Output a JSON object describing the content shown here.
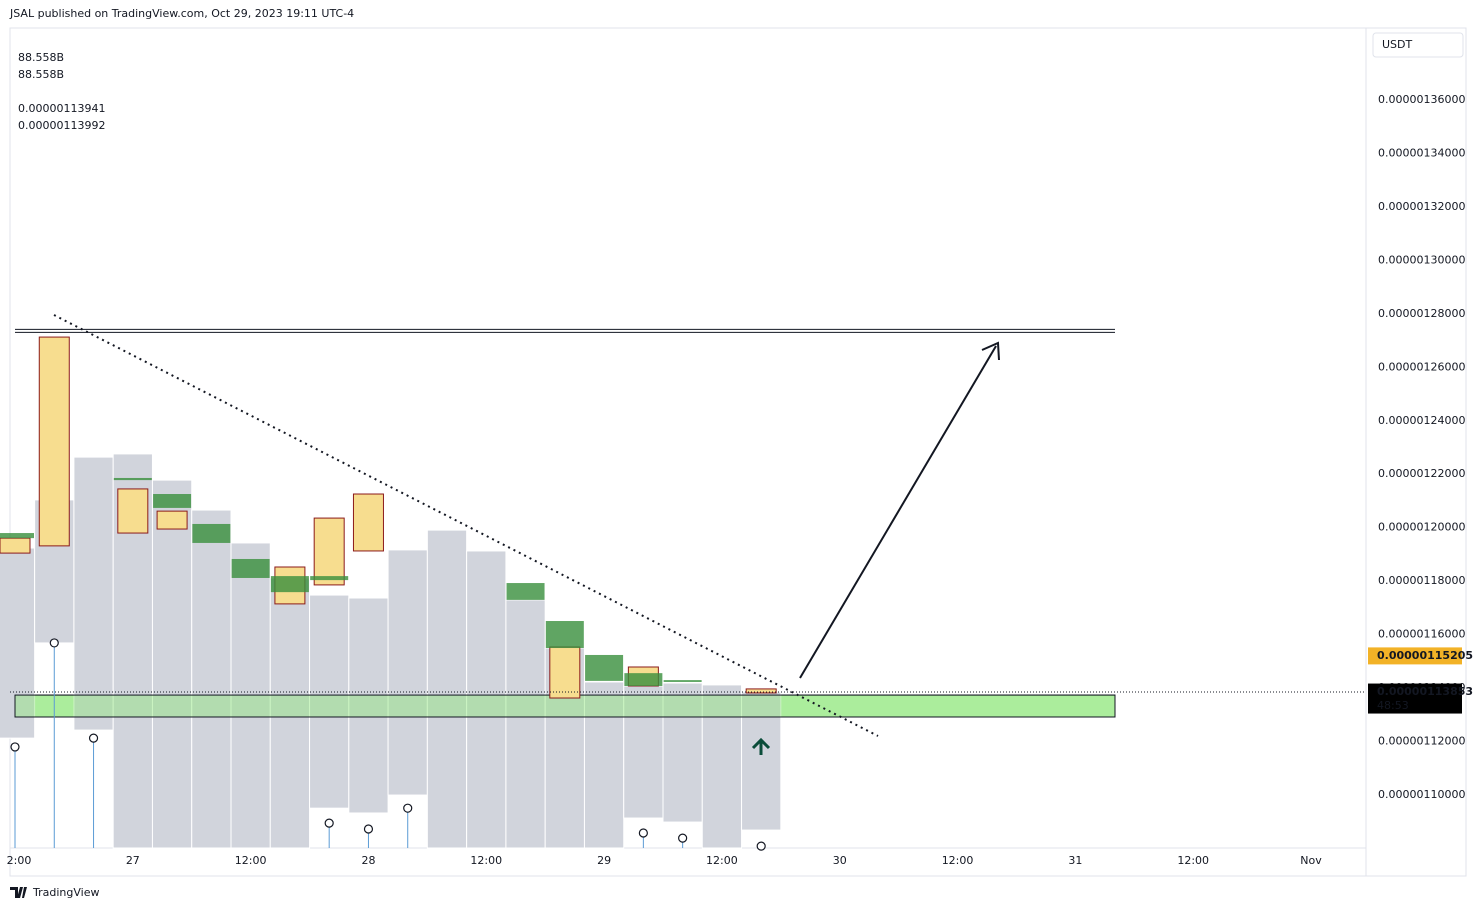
{
  "header": "JSAL published on TradingView.com, Oct 29, 2023 19:11 UTC-4",
  "footer": "TradingView",
  "chart_data": {
    "type": "candlestick",
    "currency": "USDT",
    "legend": [
      {
        "text": "88.558B",
        "color": "#131722"
      },
      {
        "text": "88.558B",
        "color": "#2f7fd6"
      },
      {
        "text": "0.00000113941",
        "color": "#c6c9d1"
      },
      {
        "text": "0.00000113992",
        "color": "#2e7d32"
      }
    ],
    "categories": [
      "2:00",
      null,
      null,
      "27",
      null,
      null,
      "12:00",
      null,
      null,
      "28",
      null,
      null,
      "12:00",
      null,
      null,
      "29",
      null,
      null,
      "12:00",
      null,
      null,
      "30",
      null,
      null,
      "12:00",
      null,
      null,
      "31",
      null,
      null,
      "12:00",
      null,
      null,
      "Nov"
    ],
    "ylim": [
      1.0802e-06,
      1.3869e-06
    ],
    "yticks": [
      {
        "value": 1.1e-06,
        "label": "0.00000110000"
      },
      {
        "value": 1.12e-06,
        "label": "0.00000112000"
      },
      {
        "value": 1.14e-06,
        "label": "0.00000114000"
      },
      {
        "value": 1.16e-06,
        "label": "0.00000116000"
      },
      {
        "value": 1.18e-06,
        "label": "0.00000118000"
      },
      {
        "value": 1.2e-06,
        "label": "0.00000120000"
      },
      {
        "value": 1.22e-06,
        "label": "0.00000122000"
      },
      {
        "value": 1.24e-06,
        "label": "0.00000124000"
      },
      {
        "value": 1.26e-06,
        "label": "0.00000126000"
      },
      {
        "value": 1.28e-06,
        "label": "0.00000128000"
      },
      {
        "value": 1.3e-06,
        "label": "0.00000130000"
      },
      {
        "value": 1.32e-06,
        "label": "0.00000132000"
      },
      {
        "value": 1.34e-06,
        "label": "0.00000134000"
      },
      {
        "value": 1.36e-06,
        "label": "0.00000136000"
      }
    ],
    "columns": {
      "color": "#d1d4dc",
      "top": [
        1.1924e-06,
        1.2104e-06,
        1.2264e-06,
        1.2276e-06,
        1.2178e-06,
        1.2066e-06,
        1.1943e-06,
        1.1812e-06,
        1.1748e-06,
        1.1737e-06,
        1.1917e-06,
        1.1991e-06,
        1.1913e-06,
        1.173e-06,
        1.155e-06,
        1.1423e-06,
        1.1408e-06,
        1.1419e-06,
        1.1412e-06,
        1.1385e-06,
        null,
        null,
        null,
        null,
        null,
        null,
        null,
        null,
        null,
        null,
        null,
        null,
        null,
        null
      ],
      "bottom": [
        1.1213e-06,
        1.1569e-06,
        1.1243e-06,
        1.0802e-06,
        1.0802e-06,
        1.0802e-06,
        1.0802e-06,
        1.0802e-06,
        1.0951e-06,
        1.0933e-06,
        1.1e-06,
        1.0802e-06,
        1.0802e-06,
        1.0802e-06,
        1.0802e-06,
        1.0802e-06,
        1.0914e-06,
        1.0899e-06,
        1.0802e-06,
        1.0869e-06,
        null,
        null,
        null,
        null,
        null,
        null,
        null,
        null,
        null,
        null,
        null,
        null,
        null,
        null
      ]
    },
    "up_boxes": {
      "color": "#388e3c",
      "top": [
        1.198e-06,
        null,
        null,
        1.2186e-06,
        1.2126e-06,
        1.2014e-06,
        1.1883e-06,
        1.1819e-06,
        1.1819e-06,
        null,
        null,
        null,
        null,
        1.1793e-06,
        1.1651e-06,
        1.1524e-06,
        1.1456e-06,
        1.143e-06,
        null,
        null,
        null,
        null,
        null,
        null,
        null,
        null,
        null,
        null,
        null,
        null,
        null,
        null,
        null,
        null
      ],
      "bottom": [
        1.1961e-06,
        null,
        null,
        1.2178e-06,
        1.2074e-06,
        1.1943e-06,
        1.1812e-06,
        1.1759e-06,
        1.1804e-06,
        null,
        null,
        null,
        null,
        1.173e-06,
        1.155e-06,
        1.1427e-06,
        1.1408e-06,
        1.1423e-06,
        null,
        null,
        null,
        null,
        null,
        null,
        null,
        null,
        null,
        null,
        null,
        null,
        null,
        null,
        null,
        null
      ]
    },
    "down_boxes": {
      "color": "#f7dd8f",
      "border": "#8b1a1a",
      "top": [
        1.1961e-06,
        1.2713e-06,
        null,
        1.2145e-06,
        1.2062e-06,
        null,
        null,
        1.1853e-06,
        1.2036e-06,
        1.2126e-06,
        null,
        null,
        null,
        null,
        1.1554e-06,
        null,
        1.1479e-06,
        null,
        null,
        1.1397e-06,
        null,
        null,
        null,
        null,
        null,
        null,
        null,
        null,
        null,
        null,
        null,
        null,
        null,
        null
      ],
      "bottom": [
        1.1905e-06,
        1.1932e-06,
        null,
        1.198e-06,
        1.1995e-06,
        null,
        null,
        1.1715e-06,
        1.1786e-06,
        1.1913e-06,
        null,
        null,
        null,
        null,
        1.1363e-06,
        null,
        1.1408e-06,
        null,
        null,
        1.1382e-06,
        null,
        null,
        null,
        null,
        null,
        null,
        null,
        null,
        null,
        null,
        null,
        null,
        null,
        null
      ]
    },
    "markers": {
      "color": "#5b9bd5",
      "values": [
        1.118e-06,
        1.1569e-06,
        1.1213e-06,
        null,
        null,
        null,
        null,
        null,
        1.0895e-06,
        1.0873e-06,
        1.0951e-06,
        null,
        null,
        null,
        null,
        null,
        1.0858e-06,
        1.0839e-06,
        null,
        1.0809e-06,
        null,
        null,
        null,
        null,
        null,
        null,
        null,
        null,
        null,
        null,
        null,
        null,
        null,
        null
      ]
    },
    "resistance": 1.2736e-06,
    "zone": [
      1.1374e-06,
      1.1292e-06
    ],
    "price_labels": [
      {
        "value": 1.15205e-06,
        "label": "0.00000115205",
        "color": "#f2b227"
      },
      {
        "value": 1.13853e-06,
        "label": "0.00000113853",
        "color": "#000000",
        "countdown": "48:53"
      }
    ]
  }
}
